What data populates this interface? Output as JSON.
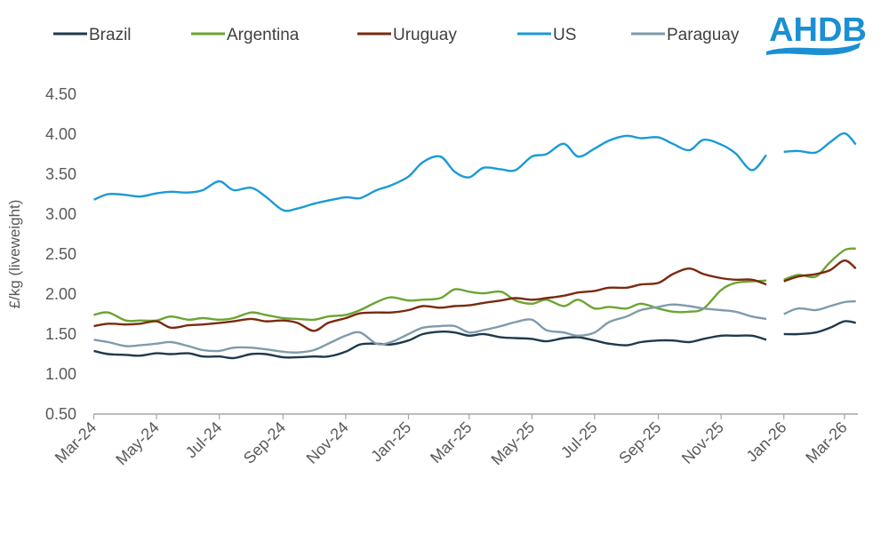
{
  "logo": {
    "text": "AHDB",
    "color": "#1b8fd2"
  },
  "chart_data": {
    "type": "line",
    "title": "",
    "xlabel": "",
    "ylabel": "£/kg (liveweight)",
    "ylim": [
      0.5,
      4.5
    ],
    "yticks": [
      "0.50",
      "1.00",
      "1.50",
      "2.00",
      "2.50",
      "3.00",
      "3.50",
      "4.00",
      "4.50"
    ],
    "xlim": [
      "2024-03-01",
      "2026-03-14"
    ],
    "xticks": [
      {
        "date": "2024-03-01",
        "label": "Mar-24"
      },
      {
        "date": "2024-05-01",
        "label": "May-24"
      },
      {
        "date": "2024-07-01",
        "label": "Jul-24"
      },
      {
        "date": "2024-09-01",
        "label": "Sep-24"
      },
      {
        "date": "2024-11-01",
        "label": "Nov-24"
      },
      {
        "date": "2025-01-01",
        "label": "Jan-25"
      },
      {
        "date": "2025-03-01",
        "label": "Mar-25"
      },
      {
        "date": "2025-05-01",
        "label": "May-25"
      },
      {
        "date": "2025-07-01",
        "label": "Jul-25"
      },
      {
        "date": "2025-09-01",
        "label": "Sep-25"
      },
      {
        "date": "2025-11-01",
        "label": "Nov-25"
      },
      {
        "date": "2026-01-01",
        "label": "Jan-26"
      },
      {
        "date": "2026-03-01",
        "label": "Mar-26"
      }
    ],
    "grid": false,
    "legend": "top",
    "x_segments": [
      [
        "2024-03-01",
        "2024-03-15",
        "2024-04-01",
        "2024-04-15",
        "2024-05-01",
        "2024-05-15",
        "2024-06-01",
        "2024-06-15",
        "2024-07-01",
        "2024-07-15",
        "2024-08-01",
        "2024-08-15",
        "2024-09-01",
        "2024-09-15",
        "2024-10-01",
        "2024-10-15",
        "2024-11-01",
        "2024-11-15",
        "2024-12-01",
        "2024-12-15",
        "2025-01-01",
        "2025-01-15",
        "2025-02-01",
        "2025-02-15",
        "2025-03-01",
        "2025-03-15",
        "2025-04-01",
        "2025-04-15",
        "2025-05-01",
        "2025-05-15",
        "2025-06-01",
        "2025-06-15",
        "2025-07-01",
        "2025-07-15",
        "2025-08-01",
        "2025-08-15",
        "2025-09-01",
        "2025-09-15",
        "2025-10-01",
        "2025-10-15",
        "2025-11-01",
        "2025-11-15",
        "2025-12-01",
        "2025-12-15"
      ],
      [
        "2026-01-01",
        "2026-01-15",
        "2026-02-01",
        "2026-02-15",
        "2026-03-01",
        "2026-03-12"
      ]
    ],
    "series": [
      {
        "name": "Brazil",
        "color": "#1f3a4d",
        "segments": [
          [
            1.29,
            1.25,
            1.24,
            1.23,
            1.26,
            1.25,
            1.26,
            1.22,
            1.22,
            1.2,
            1.25,
            1.25,
            1.21,
            1.21,
            1.22,
            1.22,
            1.28,
            1.37,
            1.38,
            1.37,
            1.42,
            1.5,
            1.53,
            1.52,
            1.48,
            1.5,
            1.46,
            1.45,
            1.44,
            1.41,
            1.45,
            1.46,
            1.42,
            1.38,
            1.36,
            1.4,
            1.42,
            1.42,
            1.4,
            1.44,
            1.48,
            1.48,
            1.48,
            1.43
          ],
          [
            1.5,
            1.5,
            1.52,
            1.58,
            1.66,
            1.64
          ]
        ]
      },
      {
        "name": "Argentina",
        "color": "#6aa531",
        "segments": [
          [
            1.74,
            1.77,
            1.67,
            1.67,
            1.67,
            1.72,
            1.68,
            1.7,
            1.68,
            1.7,
            1.77,
            1.74,
            1.7,
            1.69,
            1.68,
            1.72,
            1.74,
            1.8,
            1.9,
            1.96,
            1.92,
            1.93,
            1.95,
            2.06,
            2.03,
            2.01,
            2.03,
            1.92,
            1.88,
            1.93,
            1.85,
            1.93,
            1.82,
            1.84,
            1.82,
            1.88,
            1.82,
            1.78,
            1.78,
            1.82,
            2.05,
            2.14,
            2.16,
            2.17
          ],
          [
            2.18,
            2.24,
            2.22,
            2.4,
            2.55,
            2.57
          ]
        ]
      },
      {
        "name": "Uruguay",
        "color": "#7a2a0e",
        "segments": [
          [
            1.6,
            1.63,
            1.62,
            1.63,
            1.66,
            1.58,
            1.61,
            1.62,
            1.64,
            1.66,
            1.69,
            1.66,
            1.67,
            1.64,
            1.54,
            1.64,
            1.7,
            1.76,
            1.77,
            1.77,
            1.8,
            1.85,
            1.83,
            1.85,
            1.86,
            1.89,
            1.92,
            1.95,
            1.93,
            1.95,
            1.98,
            2.02,
            2.04,
            2.08,
            2.08,
            2.12,
            2.14,
            2.25,
            2.32,
            2.25,
            2.2,
            2.18,
            2.18,
            2.12
          ],
          [
            2.16,
            2.22,
            2.25,
            2.3,
            2.42,
            2.32
          ]
        ]
      },
      {
        "name": "US",
        "color": "#1b9ad6",
        "segments": [
          [
            3.18,
            3.25,
            3.24,
            3.22,
            3.26,
            3.28,
            3.27,
            3.3,
            3.41,
            3.3,
            3.33,
            3.22,
            3.05,
            3.07,
            3.13,
            3.17,
            3.21,
            3.2,
            3.3,
            3.36,
            3.47,
            3.65,
            3.72,
            3.53,
            3.46,
            3.58,
            3.56,
            3.55,
            3.72,
            3.75,
            3.88,
            3.72,
            3.82,
            3.92,
            3.98,
            3.95,
            3.96,
            3.88,
            3.8,
            3.93,
            3.87,
            3.76,
            3.55,
            3.74
          ],
          [
            3.78,
            3.79,
            3.77,
            3.9,
            4.01,
            3.87
          ]
        ]
      },
      {
        "name": "Paraguay",
        "color": "#7f9bab",
        "segments": [
          [
            1.43,
            1.4,
            1.35,
            1.36,
            1.38,
            1.4,
            1.35,
            1.3,
            1.29,
            1.33,
            1.33,
            1.31,
            1.28,
            1.27,
            1.3,
            1.38,
            1.48,
            1.52,
            1.38,
            1.4,
            1.5,
            1.58,
            1.6,
            1.6,
            1.52,
            1.55,
            1.6,
            1.65,
            1.68,
            1.55,
            1.52,
            1.48,
            1.52,
            1.65,
            1.72,
            1.8,
            1.84,
            1.87,
            1.85,
            1.82,
            1.8,
            1.78,
            1.72,
            1.69
          ],
          [
            1.75,
            1.82,
            1.8,
            1.85,
            1.9,
            1.91
          ]
        ]
      }
    ]
  }
}
